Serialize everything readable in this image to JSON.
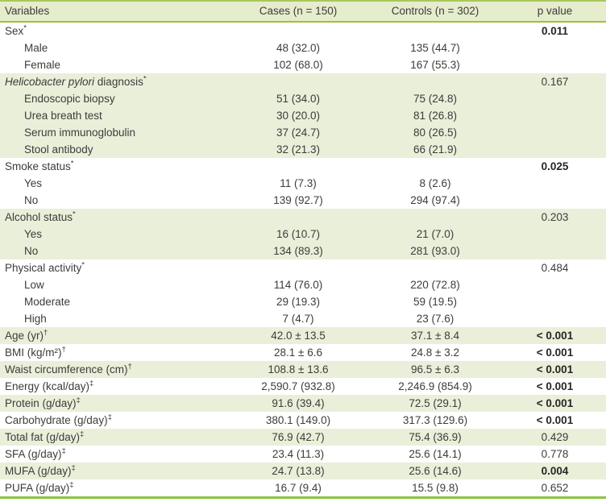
{
  "colors": {
    "header_bg": "#e5edcc",
    "shade_bg": "#e9efd9",
    "header_rule": "#9dc23c",
    "top_rule": "#a8c75f",
    "bottom_rule": "#8bc53e",
    "text": "#3d3c3a",
    "bold_text": "#272624"
  },
  "table": {
    "header": {
      "variables": "Variables",
      "cases": "Cases (n = 150)",
      "controls": "Controls (n = 302)",
      "p": "p value"
    },
    "rows": [
      {
        "label": "Sex",
        "sup": "*",
        "indent": false,
        "cases": "",
        "controls": "",
        "p": "0.011",
        "p_bold": true,
        "shaded": false
      },
      {
        "label": "Male",
        "indent": true,
        "cases": "48 (32.0)",
        "controls": "135 (44.7)",
        "p": "",
        "p_bold": false,
        "shaded": false
      },
      {
        "label": "Female",
        "indent": true,
        "cases": "102 (68.0)",
        "controls": "167 (55.3)",
        "p": "",
        "p_bold": false,
        "shaded": false
      },
      {
        "italic": "Helicobacter pylori",
        "label": " diagnosis",
        "sup": "*",
        "indent": false,
        "cases": "",
        "controls": "",
        "p": "0.167",
        "p_bold": false,
        "shaded": true
      },
      {
        "label": "Endoscopic biopsy",
        "indent": true,
        "cases": "51 (34.0)",
        "controls": "75 (24.8)",
        "p": "",
        "p_bold": false,
        "shaded": true
      },
      {
        "label": "Urea breath test",
        "indent": true,
        "cases": "30 (20.0)",
        "controls": "81 (26.8)",
        "p": "",
        "p_bold": false,
        "shaded": true
      },
      {
        "label": "Serum immunoglobulin",
        "indent": true,
        "cases": "37 (24.7)",
        "controls": "80 (26.5)",
        "p": "",
        "p_bold": false,
        "shaded": true
      },
      {
        "label": "Stool antibody",
        "indent": true,
        "cases": "32 (21.3)",
        "controls": "66 (21.9)",
        "p": "",
        "p_bold": false,
        "shaded": true
      },
      {
        "label": "Smoke status",
        "sup": "*",
        "indent": false,
        "cases": "",
        "controls": "",
        "p": "0.025",
        "p_bold": true,
        "shaded": false
      },
      {
        "label": "Yes",
        "indent": true,
        "cases": "11 (7.3)",
        "controls": "8 (2.6)",
        "p": "",
        "p_bold": false,
        "shaded": false
      },
      {
        "label": "No",
        "indent": true,
        "cases": "139 (92.7)",
        "controls": "294 (97.4)",
        "p": "",
        "p_bold": false,
        "shaded": false
      },
      {
        "label": "Alcohol status",
        "sup": "*",
        "indent": false,
        "cases": "",
        "controls": "",
        "p": "0.203",
        "p_bold": false,
        "shaded": true
      },
      {
        "label": "Yes",
        "indent": true,
        "cases": "16 (10.7)",
        "controls": "21 (7.0)",
        "p": "",
        "p_bold": false,
        "shaded": true
      },
      {
        "label": "No",
        "indent": true,
        "cases": "134 (89.3)",
        "controls": "281 (93.0)",
        "p": "",
        "p_bold": false,
        "shaded": true
      },
      {
        "label": "Physical activity",
        "sup": "*",
        "indent": false,
        "cases": "",
        "controls": "",
        "p": "0.484",
        "p_bold": false,
        "shaded": false
      },
      {
        "label": "Low",
        "indent": true,
        "cases": "114 (76.0)",
        "controls": "220 (72.8)",
        "p": "",
        "p_bold": false,
        "shaded": false
      },
      {
        "label": "Moderate",
        "indent": true,
        "cases": "29 (19.3)",
        "controls": "59 (19.5)",
        "p": "",
        "p_bold": false,
        "shaded": false
      },
      {
        "label": "High",
        "indent": true,
        "cases": "7 (4.7)",
        "controls": "23 (7.6)",
        "p": "",
        "p_bold": false,
        "shaded": false
      },
      {
        "label": "Age (yr)",
        "sup": "†",
        "indent": false,
        "cases": "42.0 ± 13.5",
        "controls": "37.1 ± 8.4",
        "p": "< 0.001",
        "p_bold": true,
        "shaded": true
      },
      {
        "label": "BMI (kg/m²)",
        "sup": "†",
        "indent": false,
        "cases": "28.1 ± 6.6",
        "controls": "24.8 ± 3.2",
        "p": "< 0.001",
        "p_bold": true,
        "shaded": false
      },
      {
        "label": "Waist circumference (cm)",
        "sup": "†",
        "indent": false,
        "cases": "108.8 ± 13.6",
        "controls": "96.5 ± 6.3",
        "p": "< 0.001",
        "p_bold": true,
        "shaded": true
      },
      {
        "label": "Energy (kcal/day)",
        "sup": "‡",
        "indent": false,
        "cases": "2,590.7 (932.8)",
        "controls": "2,246.9 (854.9)",
        "p": "< 0.001",
        "p_bold": true,
        "shaded": false
      },
      {
        "label": "Protein (g/day)",
        "sup": "‡",
        "indent": false,
        "cases": "91.6 (39.4)",
        "controls": "72.5 (29.1)",
        "p": "< 0.001",
        "p_bold": true,
        "shaded": true
      },
      {
        "label": "Carbohydrate (g/day)",
        "sup": "‡",
        "indent": false,
        "cases": "380.1 (149.0)",
        "controls": "317.3 (129.6)",
        "p": "< 0.001",
        "p_bold": true,
        "shaded": false
      },
      {
        "label": "Total fat (g/day)",
        "sup": "‡",
        "indent": false,
        "cases": "76.9 (42.7)",
        "controls": "75.4 (36.9)",
        "p": "0.429",
        "p_bold": false,
        "shaded": true
      },
      {
        "label": "SFA (g/day)",
        "sup": "‡",
        "indent": false,
        "cases": "23.4 (11.3)",
        "controls": "25.6 (14.1)",
        "p": "0.778",
        "p_bold": false,
        "shaded": false
      },
      {
        "label": "MUFA (g/day)",
        "sup": "‡",
        "indent": false,
        "cases": "24.7 (13.8)",
        "controls": "25.6 (14.6)",
        "p": "0.004",
        "p_bold": true,
        "shaded": true
      },
      {
        "label": "PUFA (g/day)",
        "sup": "‡",
        "indent": false,
        "cases": "16.7 (9.4)",
        "controls": "15.5 (9.8)",
        "p": "0.652",
        "p_bold": false,
        "shaded": false
      }
    ]
  }
}
